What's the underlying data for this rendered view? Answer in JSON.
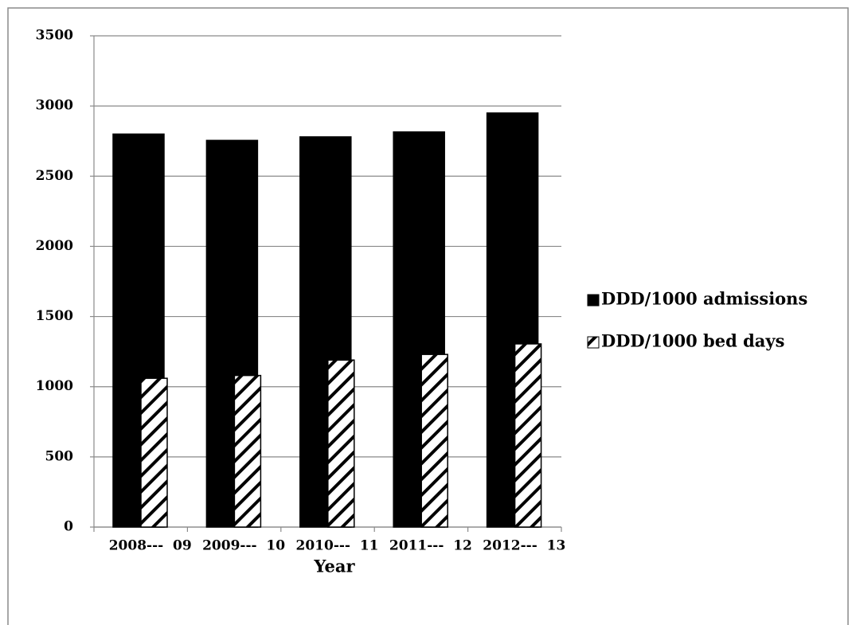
{
  "chart_data": {
    "type": "bar",
    "x_label": "Year",
    "categories": [
      "2008---  09",
      "2009---  10",
      "2010---  11",
      "2011---  12",
      "2012---  13"
    ],
    "series": [
      {
        "name": "DDD/1000 admissions",
        "color": "#000000",
        "values": [
          2800,
          2755,
          2780,
          2815,
          2950
        ]
      },
      {
        "name": "DDD/1000 bed days",
        "color": "#000000",
        "pattern": "diagonal",
        "values": [
          1060,
          1080,
          1190,
          1230,
          1305
        ]
      }
    ],
    "ylim": [
      0,
      3500
    ],
    "yticks": [
      0,
      500,
      1000,
      1500,
      2000,
      2500,
      3000,
      3500
    ],
    "grid": true,
    "legend": "right"
  }
}
